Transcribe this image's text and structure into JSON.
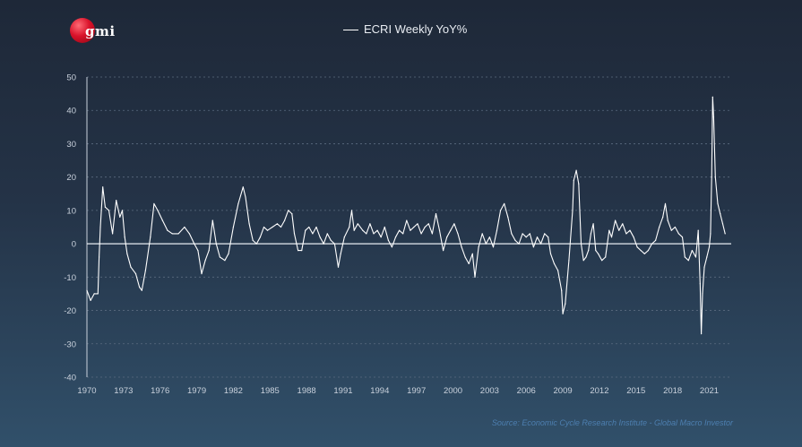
{
  "logo": {
    "text": "gmi"
  },
  "colors": {
    "line": "#ffffff",
    "grid": "#5b6b80",
    "axis": "#c9d1dc",
    "source": "#4d7fb0"
  },
  "source_note": "Source: Economic Cycle Research Institute - Global Macro Investor",
  "chart_data": {
    "type": "line",
    "title": "",
    "xlabel": "",
    "ylabel": "",
    "legend": "top-center",
    "grid": true,
    "xlim": [
      1970,
      2022.8
    ],
    "ylim": [
      -40,
      50
    ],
    "yticks": [
      50,
      40,
      30,
      20,
      10,
      0,
      -10,
      -20,
      -30,
      -40
    ],
    "xticks": [
      1970,
      1973,
      1976,
      1979,
      1982,
      1985,
      1988,
      1991,
      1994,
      1997,
      2000,
      2003,
      2006,
      2009,
      2012,
      2015,
      2018,
      2021
    ],
    "series": [
      {
        "name": "ECRI Weekly YoY%",
        "points": [
          [
            1970.0,
            -14
          ],
          [
            1970.3,
            -17
          ],
          [
            1970.6,
            -15
          ],
          [
            1970.9,
            -15
          ],
          [
            1971.0,
            -4
          ],
          [
            1971.1,
            5
          ],
          [
            1971.3,
            17
          ],
          [
            1971.5,
            11
          ],
          [
            1971.8,
            10
          ],
          [
            1972.1,
            3
          ],
          [
            1972.4,
            13
          ],
          [
            1972.7,
            8
          ],
          [
            1972.9,
            10
          ],
          [
            1973.1,
            2
          ],
          [
            1973.3,
            -3
          ],
          [
            1973.6,
            -7
          ],
          [
            1974.0,
            -9
          ],
          [
            1974.3,
            -13
          ],
          [
            1974.5,
            -14
          ],
          [
            1974.8,
            -8
          ],
          [
            1975.2,
            2
          ],
          [
            1975.5,
            12
          ],
          [
            1975.8,
            10
          ],
          [
            1976.2,
            7
          ],
          [
            1976.6,
            4
          ],
          [
            1977.0,
            3
          ],
          [
            1977.5,
            3
          ],
          [
            1978.0,
            5
          ],
          [
            1978.4,
            3
          ],
          [
            1978.8,
            0
          ],
          [
            1979.1,
            -2
          ],
          [
            1979.4,
            -9
          ],
          [
            1979.7,
            -5
          ],
          [
            1980.0,
            -2
          ],
          [
            1980.3,
            7
          ],
          [
            1980.6,
            0
          ],
          [
            1980.9,
            -4
          ],
          [
            1981.3,
            -5
          ],
          [
            1981.6,
            -3
          ],
          [
            1982.0,
            5
          ],
          [
            1982.4,
            12
          ],
          [
            1982.8,
            17
          ],
          [
            1983.0,
            14
          ],
          [
            1983.3,
            6
          ],
          [
            1983.6,
            1
          ],
          [
            1983.9,
            0
          ],
          [
            1984.2,
            2
          ],
          [
            1984.5,
            5
          ],
          [
            1984.8,
            4
          ],
          [
            1985.2,
            5
          ],
          [
            1985.6,
            6
          ],
          [
            1985.9,
            5
          ],
          [
            1986.2,
            7
          ],
          [
            1986.5,
            10
          ],
          [
            1986.8,
            9
          ],
          [
            1987.0,
            3
          ],
          [
            1987.3,
            -2
          ],
          [
            1987.6,
            -2
          ],
          [
            1987.9,
            4
          ],
          [
            1988.2,
            5
          ],
          [
            1988.5,
            3
          ],
          [
            1988.8,
            5
          ],
          [
            1989.1,
            2
          ],
          [
            1989.4,
            0
          ],
          [
            1989.7,
            3
          ],
          [
            1990.0,
            1
          ],
          [
            1990.3,
            0
          ],
          [
            1990.6,
            -7
          ],
          [
            1990.8,
            -3
          ],
          [
            1991.1,
            2
          ],
          [
            1991.5,
            5
          ],
          [
            1991.7,
            10
          ],
          [
            1991.9,
            4
          ],
          [
            1992.2,
            6
          ],
          [
            1992.6,
            4
          ],
          [
            1992.9,
            3
          ],
          [
            1993.2,
            6
          ],
          [
            1993.5,
            3
          ],
          [
            1993.8,
            4
          ],
          [
            1994.1,
            2
          ],
          [
            1994.4,
            5
          ],
          [
            1994.7,
            1
          ],
          [
            1995.0,
            -1
          ],
          [
            1995.3,
            2
          ],
          [
            1995.6,
            4
          ],
          [
            1995.9,
            3
          ],
          [
            1996.2,
            7
          ],
          [
            1996.5,
            4
          ],
          [
            1996.8,
            5
          ],
          [
            1997.1,
            6
          ],
          [
            1997.4,
            3
          ],
          [
            1997.7,
            5
          ],
          [
            1998.0,
            6
          ],
          [
            1998.3,
            3
          ],
          [
            1998.6,
            9
          ],
          [
            1998.9,
            4
          ],
          [
            1999.2,
            -2
          ],
          [
            1999.5,
            2
          ],
          [
            1999.8,
            4
          ],
          [
            2000.1,
            6
          ],
          [
            2000.4,
            3
          ],
          [
            2000.7,
            -1
          ],
          [
            2001.0,
            -4
          ],
          [
            2001.3,
            -6
          ],
          [
            2001.6,
            -3
          ],
          [
            2001.8,
            -10
          ],
          [
            2002.1,
            -1
          ],
          [
            2002.4,
            3
          ],
          [
            2002.7,
            0
          ],
          [
            2003.0,
            2
          ],
          [
            2003.3,
            -1
          ],
          [
            2003.6,
            4
          ],
          [
            2003.9,
            10
          ],
          [
            2004.2,
            12
          ],
          [
            2004.5,
            8
          ],
          [
            2004.8,
            3
          ],
          [
            2005.1,
            1
          ],
          [
            2005.4,
            0
          ],
          [
            2005.7,
            3
          ],
          [
            2006.0,
            2
          ],
          [
            2006.3,
            3
          ],
          [
            2006.6,
            -1
          ],
          [
            2006.9,
            2
          ],
          [
            2007.2,
            0
          ],
          [
            2007.5,
            3
          ],
          [
            2007.8,
            2
          ],
          [
            2008.0,
            -3
          ],
          [
            2008.3,
            -6
          ],
          [
            2008.6,
            -8
          ],
          [
            2008.9,
            -14
          ],
          [
            2009.0,
            -21
          ],
          [
            2009.2,
            -18
          ],
          [
            2009.5,
            -5
          ],
          [
            2009.8,
            10
          ],
          [
            2009.9,
            19
          ],
          [
            2010.1,
            22
          ],
          [
            2010.3,
            18
          ],
          [
            2010.5,
            0
          ],
          [
            2010.7,
            -5
          ],
          [
            2010.9,
            -4
          ],
          [
            2011.1,
            -2
          ],
          [
            2011.3,
            3
          ],
          [
            2011.5,
            6
          ],
          [
            2011.7,
            -2
          ],
          [
            2011.9,
            -3
          ],
          [
            2012.2,
            -5
          ],
          [
            2012.5,
            -4
          ],
          [
            2012.8,
            4
          ],
          [
            2013.0,
            2
          ],
          [
            2013.3,
            7
          ],
          [
            2013.6,
            4
          ],
          [
            2013.9,
            6
          ],
          [
            2014.2,
            3
          ],
          [
            2014.5,
            4
          ],
          [
            2014.8,
            2
          ],
          [
            2015.1,
            -1
          ],
          [
            2015.4,
            -2
          ],
          [
            2015.7,
            -3
          ],
          [
            2016.0,
            -2
          ],
          [
            2016.3,
            0
          ],
          [
            2016.6,
            1
          ],
          [
            2016.9,
            5
          ],
          [
            2017.2,
            8
          ],
          [
            2017.4,
            12
          ],
          [
            2017.6,
            7
          ],
          [
            2017.9,
            4
          ],
          [
            2018.2,
            5
          ],
          [
            2018.5,
            3
          ],
          [
            2018.8,
            2
          ],
          [
            2019.0,
            -4
          ],
          [
            2019.3,
            -5
          ],
          [
            2019.6,
            -2
          ],
          [
            2019.9,
            -4
          ],
          [
            2020.0,
            0
          ],
          [
            2020.1,
            4
          ],
          [
            2020.25,
            -12
          ],
          [
            2020.35,
            -27
          ],
          [
            2020.45,
            -15
          ],
          [
            2020.6,
            -7
          ],
          [
            2020.8,
            -4
          ],
          [
            2021.0,
            -1
          ],
          [
            2021.1,
            3
          ],
          [
            2021.2,
            20
          ],
          [
            2021.28,
            44
          ],
          [
            2021.36,
            38
          ],
          [
            2021.5,
            20
          ],
          [
            2021.7,
            12
          ],
          [
            2021.9,
            9
          ],
          [
            2022.1,
            6
          ],
          [
            2022.3,
            3
          ]
        ]
      }
    ]
  }
}
